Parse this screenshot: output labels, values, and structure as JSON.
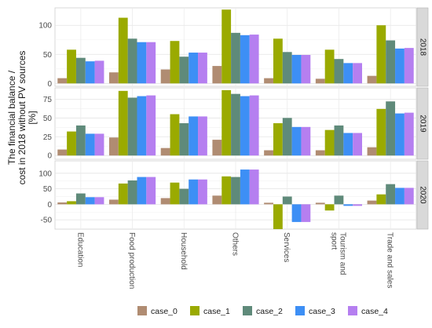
{
  "chart_data": {
    "type": "bar",
    "ylabel_lines": [
      "The financial balance /",
      "cost in 2018 without PV sources",
      "[%]"
    ],
    "categories": [
      "Education",
      "Food production",
      "Household",
      "Others",
      "Services",
      "Tourism and sport",
      "Trade and sales"
    ],
    "category_label_lines": [
      [
        "Education"
      ],
      [
        "Food production"
      ],
      [
        "Household"
      ],
      [
        "Others"
      ],
      [
        "Services"
      ],
      [
        "Tourism and",
        "sport"
      ],
      [
        "Trade and sales"
      ]
    ],
    "legend": {
      "position": "bottom",
      "entries": [
        "case_0",
        "case_1",
        "case_2",
        "case_3",
        "case_4"
      ]
    },
    "colors": [
      "#b08c72",
      "#9aaa00",
      "#5f8a7a",
      "#3d8ff5",
      "#b57ff0"
    ],
    "grid": true,
    "panels": [
      {
        "strip": "2018",
        "ylim": [
          -5,
          130
        ],
        "yticks": [
          0,
          50,
          100
        ],
        "series": [
          {
            "name": "case_0",
            "values": [
              9,
              19,
              24,
              30,
              9,
              8,
              13
            ]
          },
          {
            "name": "case_1",
            "values": [
              58,
              113,
              73,
              127,
              77,
              58,
              100
            ]
          },
          {
            "name": "case_2",
            "values": [
              44,
              77,
              46,
              87,
              54,
              42,
              74
            ]
          },
          {
            "name": "case_3",
            "values": [
              38,
              71,
              53,
              83,
              49,
              35,
              60
            ]
          },
          {
            "name": "case_4",
            "values": [
              39,
              71,
              53,
              84,
              49,
              35,
              61
            ]
          }
        ]
      },
      {
        "strip": "2019",
        "ylim": [
          -5,
          90
        ],
        "yticks": [
          0,
          25,
          50,
          75
        ],
        "series": [
          {
            "name": "case_0",
            "values": [
              8,
              24,
              10,
              21,
              7,
              7,
              11
            ]
          },
          {
            "name": "case_1",
            "values": [
              32,
              86,
              55,
              87,
              43,
              34,
              62
            ]
          },
          {
            "name": "case_2",
            "values": [
              40,
              77,
              43,
              82,
              50,
              40,
              72
            ]
          },
          {
            "name": "case_3",
            "values": [
              29,
              79,
              52,
              79,
              38,
              30,
              56
            ]
          },
          {
            "name": "case_4",
            "values": [
              29,
              80,
              52,
              80,
              38,
              30,
              57
            ]
          }
        ]
      },
      {
        "strip": "2020",
        "ylim": [
          -80,
          140
        ],
        "yticks": [
          -50,
          0,
          50,
          100
        ],
        "series": [
          {
            "name": "case_0",
            "values": [
              6,
              15,
              20,
              28,
              5,
              5,
              12
            ]
          },
          {
            "name": "case_1",
            "values": [
              10,
              67,
              70,
              90,
              -80,
              -20,
              32
            ]
          },
          {
            "name": "case_2",
            "values": [
              35,
              77,
              50,
              88,
              25,
              28,
              65
            ]
          },
          {
            "name": "case_3",
            "values": [
              23,
              88,
              80,
              112,
              -57,
              -5,
              53
            ]
          },
          {
            "name": "case_4",
            "values": [
              23,
              88,
              80,
              112,
              -57,
              -5,
              53
            ]
          }
        ]
      }
    ]
  }
}
